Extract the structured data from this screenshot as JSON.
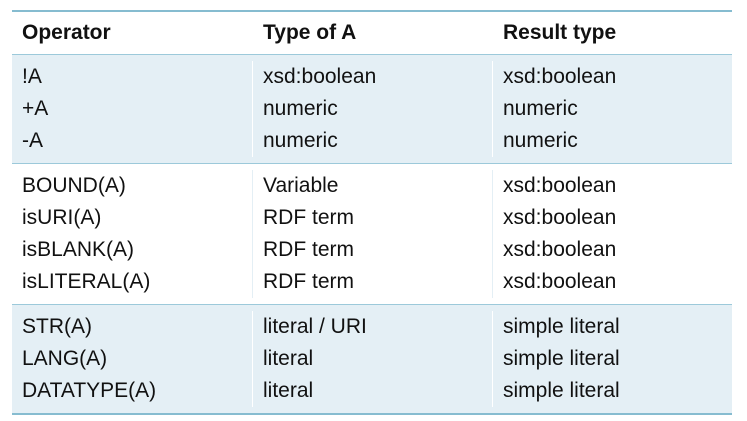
{
  "header": {
    "col1": "Operator",
    "col2": "Type of A",
    "col3": "Result type"
  },
  "groups": [
    {
      "rows": [
        {
          "operator": "!A",
          "type": "xsd:boolean",
          "result": "xsd:boolean"
        },
        {
          "operator": "+A",
          "type": "numeric",
          "result": "numeric"
        },
        {
          "operator": "-A",
          "type": "numeric",
          "result": "numeric"
        }
      ]
    },
    {
      "rows": [
        {
          "operator": "BOUND(A)",
          "type": "Variable",
          "result": "xsd:boolean"
        },
        {
          "operator": "isURI(A)",
          "type": "RDF term",
          "result": "xsd:boolean"
        },
        {
          "operator": "isBLANK(A)",
          "type": "RDF term",
          "result": "xsd:boolean"
        },
        {
          "operator": "isLITERAL(A)",
          "type": "RDF term",
          "result": "xsd:boolean"
        }
      ]
    },
    {
      "rows": [
        {
          "operator": "STR(A)",
          "type": "literal / URI",
          "result": "simple literal"
        },
        {
          "operator": "LANG(A)",
          "type": "literal",
          "result": "simple literal"
        },
        {
          "operator": "DATATYPE(A)",
          "type": "literal",
          "result": "simple literal"
        }
      ]
    }
  ],
  "colors": {
    "rule": "#86bcd0",
    "shade": "#e4eff5"
  }
}
